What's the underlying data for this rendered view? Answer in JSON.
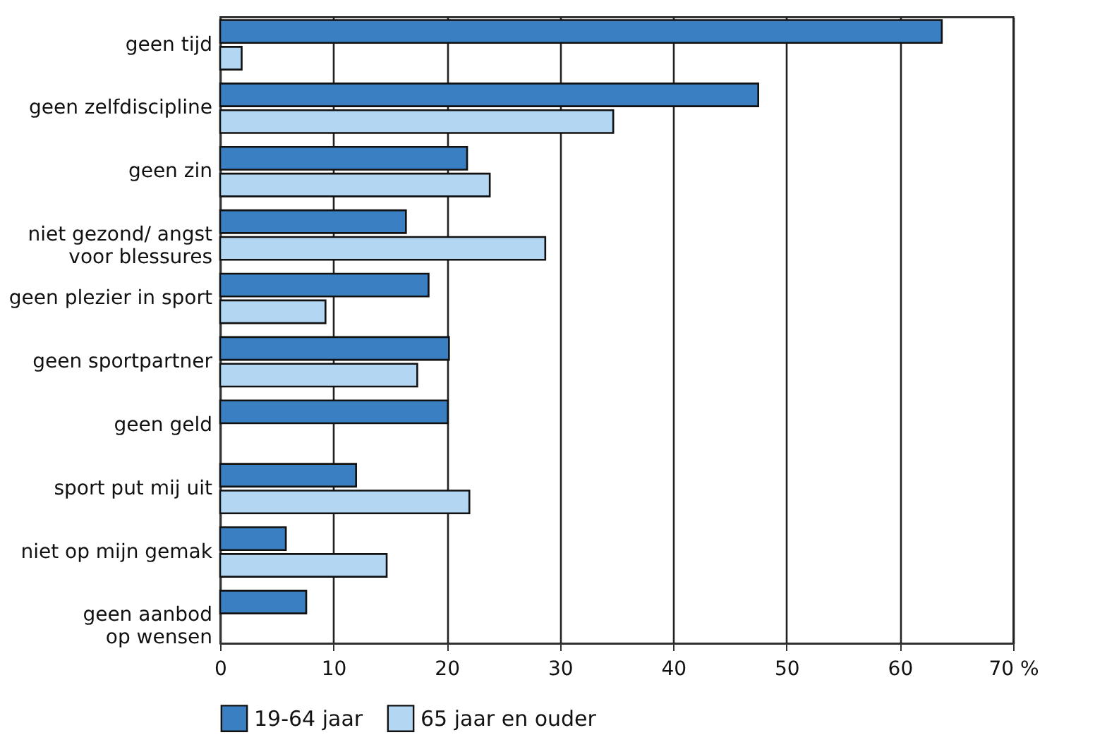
{
  "chart_data": {
    "type": "bar",
    "orientation": "horizontal",
    "categories": [
      "geen tijd",
      "geen zelfdiscipline",
      "geen zin",
      "niet gezond/ angst\nvoor blessures",
      "geen plezier in sport",
      "geen sportpartner",
      "geen geld",
      "sport put mij uit",
      "niet op mijn gemak",
      "geen aanbod\nop wensen"
    ],
    "series": [
      {
        "name": "19-64 jaar",
        "color": "#3a7fc1",
        "values": [
          63.7,
          47.5,
          21.8,
          16.4,
          18.4,
          20.2,
          20.1,
          12.0,
          5.8,
          7.6
        ]
      },
      {
        "name": "65 jaar en ouder",
        "color": "#b3d7f3",
        "values": [
          1.9,
          34.7,
          23.8,
          28.7,
          9.3,
          17.4,
          null,
          22.0,
          14.7,
          null
        ]
      }
    ],
    "xlim": [
      0,
      70
    ],
    "xticks": [
      0,
      10,
      20,
      30,
      40,
      50,
      60,
      {
        "value": 70,
        "label": "70 %"
      }
    ],
    "grid": "x",
    "legend": "bottom"
  }
}
